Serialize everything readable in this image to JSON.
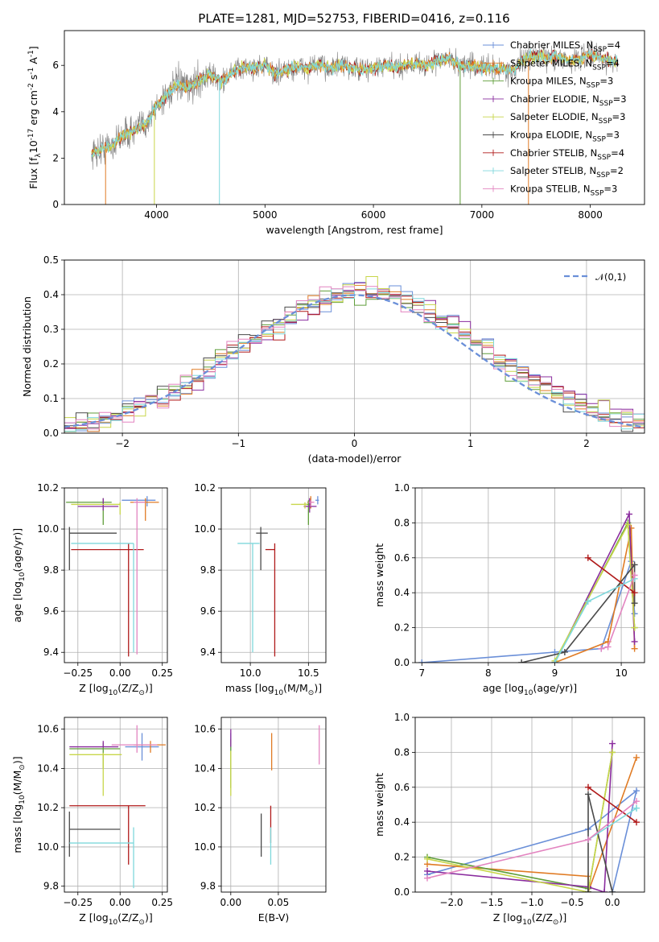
{
  "title": "PLATE=1281, MJD=52753, FIBERID=0416, z=0.116",
  "colors": {
    "c0": "#6a8fd8",
    "c1": "#e07b24",
    "c2": "#5f9e3a",
    "c3": "#8a2c9e",
    "c4": "#c8d64a",
    "c5": "#4a4a4a",
    "c6": "#b01a1a",
    "c7": "#7fd8dc",
    "c8": "#e384c0",
    "grid": "#b0b0b0",
    "observed": "#7f7f7f"
  },
  "legend_spec": [
    "Chabrier MILES, N$_{SSP}$=4",
    "Salpeter MILES, N$_{SSP}$=4",
    "Kroupa MILES, N$_{SSP}$=3",
    "Chabrier ELODIE, N$_{SSP}$=3",
    "Salpeter ELODIE, N$_{SSP}$=3",
    "Kroupa ELODIE, N$_{SSP}$=3",
    "Chabrier STELIB, N$_{SSP}$=4",
    "Salpeter STELIB, N$_{SSP}$=2",
    "Kroupa STELIB, N$_{SSP}$=3"
  ],
  "legend_hist": "$\\mathcal{N}(0,1)$",
  "chart_data": [
    {
      "type": "line",
      "name": "spectrum",
      "xlabel": "wavelength [Angstrom, rest frame]",
      "ylabel": "Flux [f$_\\lambda$10$^{-17}$ erg cm$^{-2}$ s$^{-1}$ A$^{-1}$]",
      "xlim": [
        3150,
        8500
      ],
      "ylim": [
        0,
        7.5
      ],
      "xticks": [
        4000,
        5000,
        6000,
        7000,
        8000
      ],
      "yticks": [
        0,
        2,
        4,
        6
      ],
      "continuum_x": [
        3400,
        3500,
        3600,
        3700,
        3800,
        3900,
        4000,
        4100,
        4200,
        4300,
        4400,
        4500,
        4600,
        4700,
        4800,
        4900,
        5000,
        5100,
        5200,
        5300,
        5400,
        5500,
        5600,
        5700,
        5800,
        5900,
        6000,
        6100,
        6200,
        6300,
        6400,
        6500,
        6600,
        6700,
        6800,
        6900,
        7000,
        7100,
        7200,
        7300,
        7400,
        7500,
        7600,
        7700,
        7800,
        7900,
        8000,
        8100,
        8200
      ],
      "continuum_y": [
        2.2,
        2.4,
        2.6,
        3.0,
        3.2,
        3.5,
        4.2,
        4.8,
        5.2,
        5.0,
        5.4,
        5.6,
        5.3,
        5.7,
        5.9,
        5.9,
        6.0,
        5.6,
        5.8,
        5.9,
        5.9,
        6.0,
        5.9,
        6.0,
        5.9,
        5.8,
        5.9,
        6.0,
        5.9,
        6.0,
        6.1,
        6.0,
        6.2,
        6.3,
        6.0,
        6.0,
        5.9,
        5.9,
        5.8,
        5.8,
        6.3,
        6.4,
        6.3,
        6.4,
        6.2,
        6.3,
        6.5,
        6.3,
        6.2
      ],
      "noise_amp": 0.6
    },
    {
      "type": "line",
      "name": "residual-distribution",
      "xlabel": "(data-model)/error",
      "ylabel": "Normed distribution",
      "xlim": [
        -2.5,
        2.5
      ],
      "ylim": [
        0,
        0.5
      ],
      "xticks": [
        -2,
        -1,
        0,
        1,
        2
      ],
      "xtick_labels": [
        "−2",
        "−1",
        "0",
        "1",
        "2"
      ],
      "yticks": [
        0.0,
        0.1,
        0.2,
        0.3,
        0.4,
        0.5
      ],
      "ytick_labels": [
        "0.0",
        "0.1",
        "0.2",
        "0.3",
        "0.4",
        "0.5"
      ],
      "bin_width": 0.1,
      "normal_curve": {
        "mean": 0,
        "sigma": 1
      }
    },
    {
      "type": "scatter",
      "name": "age-vs-Z",
      "xlabel": "Z [log$_{10}$($Z/Z_\\odot$)]",
      "ylabel": "age  [log$_{10}$($age/yr$)]",
      "xlim": [
        -0.33,
        0.28
      ],
      "ylim": [
        9.35,
        10.2
      ],
      "xticks": [
        -0.25,
        0.0,
        0.25
      ],
      "xtick_labels": [
        "−0.25",
        "0.00",
        "0.25"
      ],
      "yticks": [
        9.4,
        9.6,
        9.8,
        10.0,
        10.2
      ],
      "ytick_labels": [
        "9.4",
        "9.6",
        "9.8",
        "10.0",
        "10.2"
      ],
      "points": [
        {
          "x": 0.16,
          "y": 10.14,
          "xerr": [
            0.15,
            0.05
          ],
          "yerr": [
            0.03,
            0.02
          ],
          "c": "c0"
        },
        {
          "x": 0.15,
          "y": 10.13,
          "xerr": [
            0.09,
            0.08
          ],
          "yerr": [
            0.09,
            0.02
          ],
          "c": "c1"
        },
        {
          "x": -0.1,
          "y": 10.13,
          "xerr": [
            0.22,
            0.05
          ],
          "yerr": [
            0.11,
            0.02
          ],
          "c": "c2"
        },
        {
          "x": -0.1,
          "y": 10.11,
          "xerr": [
            0.15,
            0.09
          ],
          "yerr": [
            0.02,
            0.04
          ],
          "c": "c3"
        },
        {
          "x": 0.0,
          "y": 10.12,
          "xerr": [
            0.29,
            0.0
          ],
          "yerr": [
            0.05,
            0.01
          ],
          "c": "c4"
        },
        {
          "x": -0.3,
          "y": 9.98,
          "xerr": [
            0.0,
            0.28
          ],
          "yerr": [
            0.18,
            0.03
          ],
          "c": "c5"
        },
        {
          "x": 0.05,
          "y": 9.9,
          "xerr": [
            0.34,
            0.09
          ],
          "yerr": [
            0.52,
            0.03
          ],
          "c": "c6"
        },
        {
          "x": 0.08,
          "y": 9.93,
          "xerr": [
            0.37,
            0.0
          ],
          "yerr": [
            0.53,
            0.0
          ],
          "c": "c7"
        },
        {
          "x": 0.1,
          "y": 10.13,
          "xerr": [
            0.02,
            0.05
          ],
          "yerr": [
            0.74,
            0.02
          ],
          "c": "c8"
        }
      ]
    },
    {
      "type": "scatter",
      "name": "age-vs-mass",
      "xlabel": "mass [log$_{10}$($M/M_\\odot$)]",
      "ylabel": "",
      "xlim": [
        9.75,
        10.65
      ],
      "ylim": [
        9.35,
        10.2
      ],
      "xticks": [
        10.0,
        10.5
      ],
      "xtick_labels": [
        "10.0",
        "10.5"
      ],
      "yticks": [
        9.4,
        9.6,
        9.8,
        10.0,
        10.2
      ],
      "ytick_labels": [
        "9.4",
        "9.6",
        "9.8",
        "10.0",
        "10.2"
      ],
      "points": [
        {
          "x": 10.58,
          "y": 10.14,
          "xerr": [
            0.02,
            0.01
          ],
          "yerr": [
            0.02,
            0.02
          ],
          "c": "c0"
        },
        {
          "x": 10.52,
          "y": 10.13,
          "xerr": [
            0.03,
            0.01
          ],
          "yerr": [
            0.03,
            0.03
          ],
          "c": "c1"
        },
        {
          "x": 10.5,
          "y": 10.12,
          "xerr": [
            0.04,
            0.02
          ],
          "yerr": [
            0.1,
            0.02
          ],
          "c": "c2"
        },
        {
          "x": 10.51,
          "y": 10.11,
          "xerr": [
            0.05,
            0.06
          ],
          "yerr": [
            0.03,
            0.04
          ],
          "c": "c3"
        },
        {
          "x": 10.47,
          "y": 10.12,
          "xerr": [
            0.12,
            0.02
          ],
          "yerr": [
            0.02,
            0.01
          ],
          "c": "c4"
        },
        {
          "x": 10.09,
          "y": 9.98,
          "xerr": [
            0.04,
            0.06
          ],
          "yerr": [
            0.18,
            0.03
          ],
          "c": "c5"
        },
        {
          "x": 10.21,
          "y": 9.9,
          "xerr": [
            0.08,
            0.0
          ],
          "yerr": [
            0.52,
            0.03
          ],
          "c": "c6"
        },
        {
          "x": 10.02,
          "y": 9.93,
          "xerr": [
            0.13,
            0.06
          ],
          "yerr": [
            0.53,
            0.0
          ],
          "c": "c7"
        },
        {
          "x": 10.52,
          "y": 10.13,
          "xerr": [
            0.02,
            0.03
          ],
          "yerr": [
            0.02,
            0.01
          ],
          "c": "c8"
        }
      ]
    },
    {
      "type": "line",
      "name": "mass-weight-vs-age",
      "xlabel": "age  [log$_{10}$($age/yr$)]",
      "ylabel": "mass weight",
      "xlim": [
        6.9,
        10.35
      ],
      "ylim": [
        0,
        1.0
      ],
      "xticks": [
        7,
        8,
        9,
        10
      ],
      "xtick_labels": [
        "7",
        "8",
        "9",
        "10"
      ],
      "yticks": [
        0.0,
        0.2,
        0.4,
        0.6,
        0.8,
        1.0
      ],
      "ytick_labels": [
        "0.0",
        "0.2",
        "0.4",
        "0.6",
        "0.8",
        "1.0"
      ],
      "series": [
        {
          "c": "c0",
          "x": [
            7.0,
            9.0,
            9.7,
            10.15,
            10.2
          ],
          "y": [
            0.0,
            0.06,
            0.08,
            0.58,
            0.28
          ]
        },
        {
          "c": "c1",
          "x": [
            9.0,
            9.8,
            10.15,
            10.2
          ],
          "y": [
            0.0,
            0.12,
            0.77,
            0.08
          ]
        },
        {
          "c": "c2",
          "x": [
            9.0,
            10.1,
            10.2
          ],
          "y": [
            0.0,
            0.8,
            0.2
          ]
        },
        {
          "c": "c3",
          "x": [
            9.0,
            10.12,
            10.2
          ],
          "y": [
            0.0,
            0.85,
            0.12
          ]
        },
        {
          "c": "c4",
          "x": [
            9.0,
            10.1,
            10.2
          ],
          "y": [
            0.01,
            0.79,
            0.2
          ]
        },
        {
          "c": "c5",
          "x": [
            8.5,
            9.15,
            10.2,
            10.2
          ],
          "y": [
            0.0,
            0.06,
            0.56,
            0.34
          ]
        },
        {
          "c": "c6",
          "x": [
            9.5,
            10.2
          ],
          "y": [
            0.6,
            0.4
          ]
        },
        {
          "c": "c7",
          "x": [
            9.0,
            9.5,
            10.2
          ],
          "y": [
            0.0,
            0.35,
            0.48
          ]
        },
        {
          "c": "c8",
          "x": [
            9.7,
            9.8,
            10.2
          ],
          "y": [
            0.08,
            0.09,
            0.5
          ]
        }
      ]
    },
    {
      "type": "scatter",
      "name": "mass-vs-Z",
      "xlabel": "Z [log$_{10}$($Z/Z_\\odot$)]",
      "ylabel": "mass [log$_{10}$($M/M_\\odot$)]",
      "xlim": [
        -0.33,
        0.28
      ],
      "ylim": [
        9.77,
        10.66
      ],
      "xticks": [
        -0.25,
        0.0,
        0.25
      ],
      "xtick_labels": [
        "−0.25",
        "0.00",
        "0.25"
      ],
      "yticks": [
        9.8,
        10.0,
        10.2,
        10.4,
        10.6
      ],
      "ytick_labels": [
        "9.8",
        "10.0",
        "10.2",
        "10.4",
        "10.6"
      ],
      "points": [
        {
          "x": 0.13,
          "y": 10.51,
          "xerr": [
            0.1,
            0.1
          ],
          "yerr": [
            0.07,
            0.07
          ],
          "c": "c0"
        },
        {
          "x": 0.18,
          "y": 10.52,
          "xerr": [
            0.1,
            0.09
          ],
          "yerr": [
            0.04,
            0.02
          ],
          "c": "c1"
        },
        {
          "x": -0.1,
          "y": 10.5,
          "xerr": [
            0.2,
            0.1
          ],
          "yerr": [
            0.1,
            0.03
          ],
          "c": "c2"
        },
        {
          "x": -0.1,
          "y": 10.51,
          "xerr": [
            0.2,
            0.09
          ],
          "yerr": [
            0.0,
            0.03
          ],
          "c": "c3"
        },
        {
          "x": -0.1,
          "y": 10.47,
          "xerr": [
            0.2,
            0.11
          ],
          "yerr": [
            0.21,
            0.01
          ],
          "c": "c4"
        },
        {
          "x": -0.3,
          "y": 10.09,
          "xerr": [
            0.0,
            0.3
          ],
          "yerr": [
            0.14,
            0.09
          ],
          "c": "c5"
        },
        {
          "x": 0.05,
          "y": 10.21,
          "xerr": [
            0.35,
            0.1
          ],
          "yerr": [
            0.3,
            0.0
          ],
          "c": "c6"
        },
        {
          "x": 0.08,
          "y": 10.02,
          "xerr": [
            0.38,
            0.0
          ],
          "yerr": [
            0.23,
            0.08
          ],
          "c": "c7"
        },
        {
          "x": 0.1,
          "y": 10.52,
          "xerr": [
            0.15,
            0.12
          ],
          "yerr": [
            0.04,
            0.1
          ],
          "c": "c8"
        }
      ]
    },
    {
      "type": "scatter",
      "name": "mass-vs-EBV",
      "xlabel": "E(B-V)",
      "ylabel": "",
      "xlim": [
        -0.01,
        0.1
      ],
      "ylim": [
        9.77,
        10.66
      ],
      "xticks": [
        0.0,
        0.05
      ],
      "xtick_labels": [
        "0.00",
        "0.05"
      ],
      "yticks": [
        9.8,
        10.0,
        10.2,
        10.4,
        10.6
      ],
      "ytick_labels": [
        "9.8",
        "10.0",
        "10.2",
        "10.4",
        "10.6"
      ],
      "points": [
        {
          "x": 0.0,
          "y": 10.51,
          "yerr": [
            0.02,
            0.07
          ],
          "c": "c0"
        },
        {
          "x": 0.043,
          "y": 10.52,
          "yerr": [
            0.13,
            0.06
          ],
          "c": "c1"
        },
        {
          "x": 0.0,
          "y": 10.5,
          "yerr": [
            0.2,
            0.05
          ],
          "c": "c2"
        },
        {
          "x": 0.0,
          "y": 10.51,
          "yerr": [
            0.0,
            0.09
          ],
          "c": "c3"
        },
        {
          "x": 0.0,
          "y": 10.47,
          "yerr": [
            0.21,
            0.02
          ],
          "c": "c4"
        },
        {
          "x": 0.032,
          "y": 10.09,
          "yerr": [
            0.14,
            0.08
          ],
          "c": "c5"
        },
        {
          "x": 0.042,
          "y": 10.21,
          "yerr": [
            0.19,
            0.0
          ],
          "c": "c6"
        },
        {
          "x": 0.042,
          "y": 10.02,
          "yerr": [
            0.11,
            0.08
          ],
          "c": "c7"
        },
        {
          "x": 0.093,
          "y": 10.52,
          "yerr": [
            0.1,
            0.1
          ],
          "c": "c8"
        }
      ]
    },
    {
      "type": "line",
      "name": "mass-weight-vs-Z",
      "xlabel": "Z [log$_{10}$($Z/Z_\\odot$)]",
      "ylabel": "mass weight",
      "xlim": [
        -2.45,
        0.4
      ],
      "ylim": [
        0,
        1.0
      ],
      "xticks": [
        -2.0,
        -1.5,
        -1.0,
        -0.5,
        0.0
      ],
      "xtick_labels": [
        "−2.0",
        "−1.5",
        "−1.0",
        "−0.5",
        "0.0"
      ],
      "yticks": [
        0.0,
        0.2,
        0.4,
        0.6,
        0.8,
        1.0
      ],
      "ytick_labels": [
        "0.0",
        "0.2",
        "0.4",
        "0.6",
        "0.8",
        "1.0"
      ],
      "series": [
        {
          "c": "c0",
          "x": [
            -2.3,
            -0.3,
            0.3,
            0.0
          ],
          "y": [
            0.1,
            0.36,
            0.58,
            0.0
          ]
        },
        {
          "c": "c1",
          "x": [
            -2.3,
            -0.3,
            -0.3,
            0.3
          ],
          "y": [
            0.16,
            0.09,
            0.0,
            0.77
          ]
        },
        {
          "c": "c2",
          "x": [
            -2.3,
            -0.3,
            -0.3,
            0.0
          ],
          "y": [
            0.2,
            0.02,
            0.0,
            0.8
          ]
        },
        {
          "c": "c3",
          "x": [
            -2.3,
            -0.3,
            -0.1,
            0.0
          ],
          "y": [
            0.12,
            0.03,
            0.0,
            0.85
          ]
        },
        {
          "c": "c4",
          "x": [
            -2.3,
            -0.3,
            0.0
          ],
          "y": [
            0.19,
            0.0,
            0.8
          ]
        },
        {
          "c": "c5",
          "x": [
            -0.3,
            -0.3,
            0.0
          ],
          "y": [
            0.0,
            0.56,
            0.0
          ]
        },
        {
          "c": "c6",
          "x": [
            -0.3,
            0.3
          ],
          "y": [
            0.6,
            0.4
          ]
        },
        {
          "c": "c7",
          "x": [
            -0.3,
            0.3,
            0.3
          ],
          "y": [
            0.3,
            0.48,
            0.48
          ]
        },
        {
          "c": "c8",
          "x": [
            -2.3,
            -0.3,
            0.3
          ],
          "y": [
            0.08,
            0.3,
            0.52
          ]
        }
      ]
    }
  ]
}
